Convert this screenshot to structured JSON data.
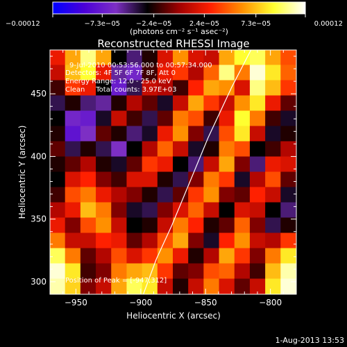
{
  "chart_data": {
    "type": "heatmap",
    "title": "Reconstructed RHESSI Image",
    "xlabel": "Heliocentric X (arcsec)",
    "ylabel": "Heliocentric Y (arcsec)",
    "xlim": [
      -970,
      -780
    ],
    "ylim": [
      290,
      485
    ],
    "xticks": [
      -950,
      -900,
      -850,
      -800
    ],
    "yticks": [
      300,
      350,
      400,
      450
    ],
    "xtick_labels": [
      "−950",
      "−900",
      "−850",
      "−800"
    ],
    "ytick_labels": [
      "300",
      "350",
      "400",
      "450"
    ],
    "colorbar": {
      "min": -0.00012,
      "max": 0.00012,
      "tick_values": [
        -0.00012,
        -7.3e-05,
        -2.4e-05,
        2.4e-05,
        7.3e-05,
        0.00012
      ],
      "tick_labels": [
        "−0.00012",
        "−7.3e−05",
        "−2.4e−05",
        "2.4e−05",
        "7.3e−05",
        "0.00012"
      ],
      "units": "(photons cm⁻² s⁻¹ asec⁻²)",
      "colormap": [
        "#0000ff",
        "#4b00d8",
        "#7d2fc4",
        "#000000",
        "#a00000",
        "#ff2000",
        "#ff9000",
        "#ffff30",
        "#ffffff"
      ]
    },
    "annotations": [
      "9-Jul-2010 00:53:56.000 to 00:57:34.000",
      "Detectors: 4F 5F 6F 7F 8F, Att 0",
      "Energy Range: 12.0 - 25.0 keV",
      "Clean     Total counts: 3.97E+03",
      "Position of Peak = [-947,312]"
    ],
    "peak": {
      "x": -947,
      "y": 312
    },
    "limb_curve": [
      [
        -815,
        485
      ],
      [
        -830,
        455
      ],
      [
        -848,
        415
      ],
      [
        -862,
        380
      ],
      [
        -876,
        345
      ],
      [
        -888,
        318
      ],
      [
        -898,
        290
      ]
    ],
    "intensity_grid": {
      "cols": 16,
      "rows": 16,
      "values": [
        [
          0.2,
          0.55,
          0.85,
          0.55,
          -0.25,
          -0.4,
          -0.2,
          0.15,
          0.5,
          0.15,
          0.1,
          0.55,
          0.75,
          0.8,
          0.55,
          0.35
        ],
        [
          0.1,
          0.6,
          0.75,
          0.2,
          -0.45,
          -0.55,
          -0.15,
          0.2,
          0.3,
          0.05,
          0.4,
          0.85,
          0.45,
          0.95,
          0.7,
          0.4
        ],
        [
          -0.15,
          0.3,
          0.2,
          -0.25,
          -0.6,
          -0.35,
          0.1,
          0.05,
          -0.15,
          0.25,
          0.55,
          0.5,
          0.15,
          0.85,
          0.6,
          0.3
        ],
        [
          -0.35,
          -0.2,
          -0.4,
          -0.45,
          -0.2,
          0.05,
          -0.1,
          -0.3,
          0.1,
          0.55,
          0.3,
          0.1,
          0.5,
          0.7,
          0.2,
          -0.1
        ],
        [
          -0.25,
          -0.55,
          -0.6,
          -0.3,
          0.1,
          -0.15,
          -0.35,
          -0.1,
          0.45,
          0.35,
          -0.15,
          0.2,
          0.75,
          0.45,
          -0.15,
          -0.3
        ],
        [
          -0.2,
          -0.65,
          -0.5,
          -0.1,
          -0.2,
          -0.4,
          -0.3,
          0.2,
          0.5,
          -0.05,
          -0.35,
          0.35,
          0.7,
          0.1,
          -0.3,
          -0.2
        ],
        [
          -0.1,
          -0.35,
          -0.2,
          -0.35,
          -0.5,
          -0.25,
          0.05,
          0.4,
          0.1,
          -0.3,
          -0.2,
          0.45,
          0.35,
          -0.25,
          -0.15,
          0.05
        ],
        [
          -0.2,
          -0.1,
          0.05,
          -0.2,
          -0.3,
          -0.1,
          0.3,
          0.2,
          -0.25,
          -0.4,
          0.1,
          0.55,
          -0.05,
          -0.4,
          0.2,
          0.15
        ],
        [
          -0.25,
          0.15,
          0.25,
          -0.05,
          -0.15,
          0.15,
          0.15,
          -0.2,
          -0.35,
          -0.05,
          0.45,
          0.3,
          -0.3,
          0.05,
          0.35,
          -0.1
        ],
        [
          -0.15,
          0.35,
          0.45,
          0.2,
          0.05,
          -0.05,
          -0.2,
          -0.35,
          -0.1,
          0.3,
          0.5,
          -0.05,
          -0.1,
          0.25,
          0.1,
          -0.3
        ],
        [
          0.05,
          0.2,
          0.6,
          0.45,
          -0.05,
          -0.3,
          -0.35,
          -0.05,
          0.15,
          0.4,
          0.1,
          -0.25,
          0.15,
          0.1,
          -0.25,
          -0.4
        ],
        [
          0.2,
          -0.05,
          0.35,
          0.5,
          0.1,
          -0.25,
          -0.2,
          0.1,
          0.45,
          0.25,
          -0.2,
          -0.1,
          0.4,
          -0.05,
          -0.35,
          -0.2
        ],
        [
          0.45,
          0.1,
          0.1,
          0.25,
          0.2,
          -0.1,
          0.05,
          0.35,
          0.55,
          -0.05,
          -0.3,
          0.25,
          0.5,
          0.1,
          0.05,
          0.3
        ],
        [
          0.8,
          0.45,
          -0.1,
          0.05,
          0.35,
          0.15,
          0.3,
          0.5,
          0.2,
          -0.2,
          0.05,
          0.55,
          0.3,
          -0.05,
          0.45,
          0.7
        ],
        [
          0.95,
          0.7,
          -0.15,
          -0.05,
          0.45,
          0.55,
          0.6,
          0.3,
          -0.1,
          -0.05,
          0.35,
          0.4,
          0.05,
          -0.15,
          0.6,
          0.9
        ],
        [
          0.9,
          0.65,
          -0.05,
          0.1,
          0.55,
          0.8,
          0.7,
          0.1,
          -0.2,
          0.1,
          0.45,
          0.15,
          -0.1,
          0.1,
          0.7,
          0.95
        ]
      ]
    }
  },
  "footer": {
    "timestamp": "1-Aug-2013 13:53"
  }
}
